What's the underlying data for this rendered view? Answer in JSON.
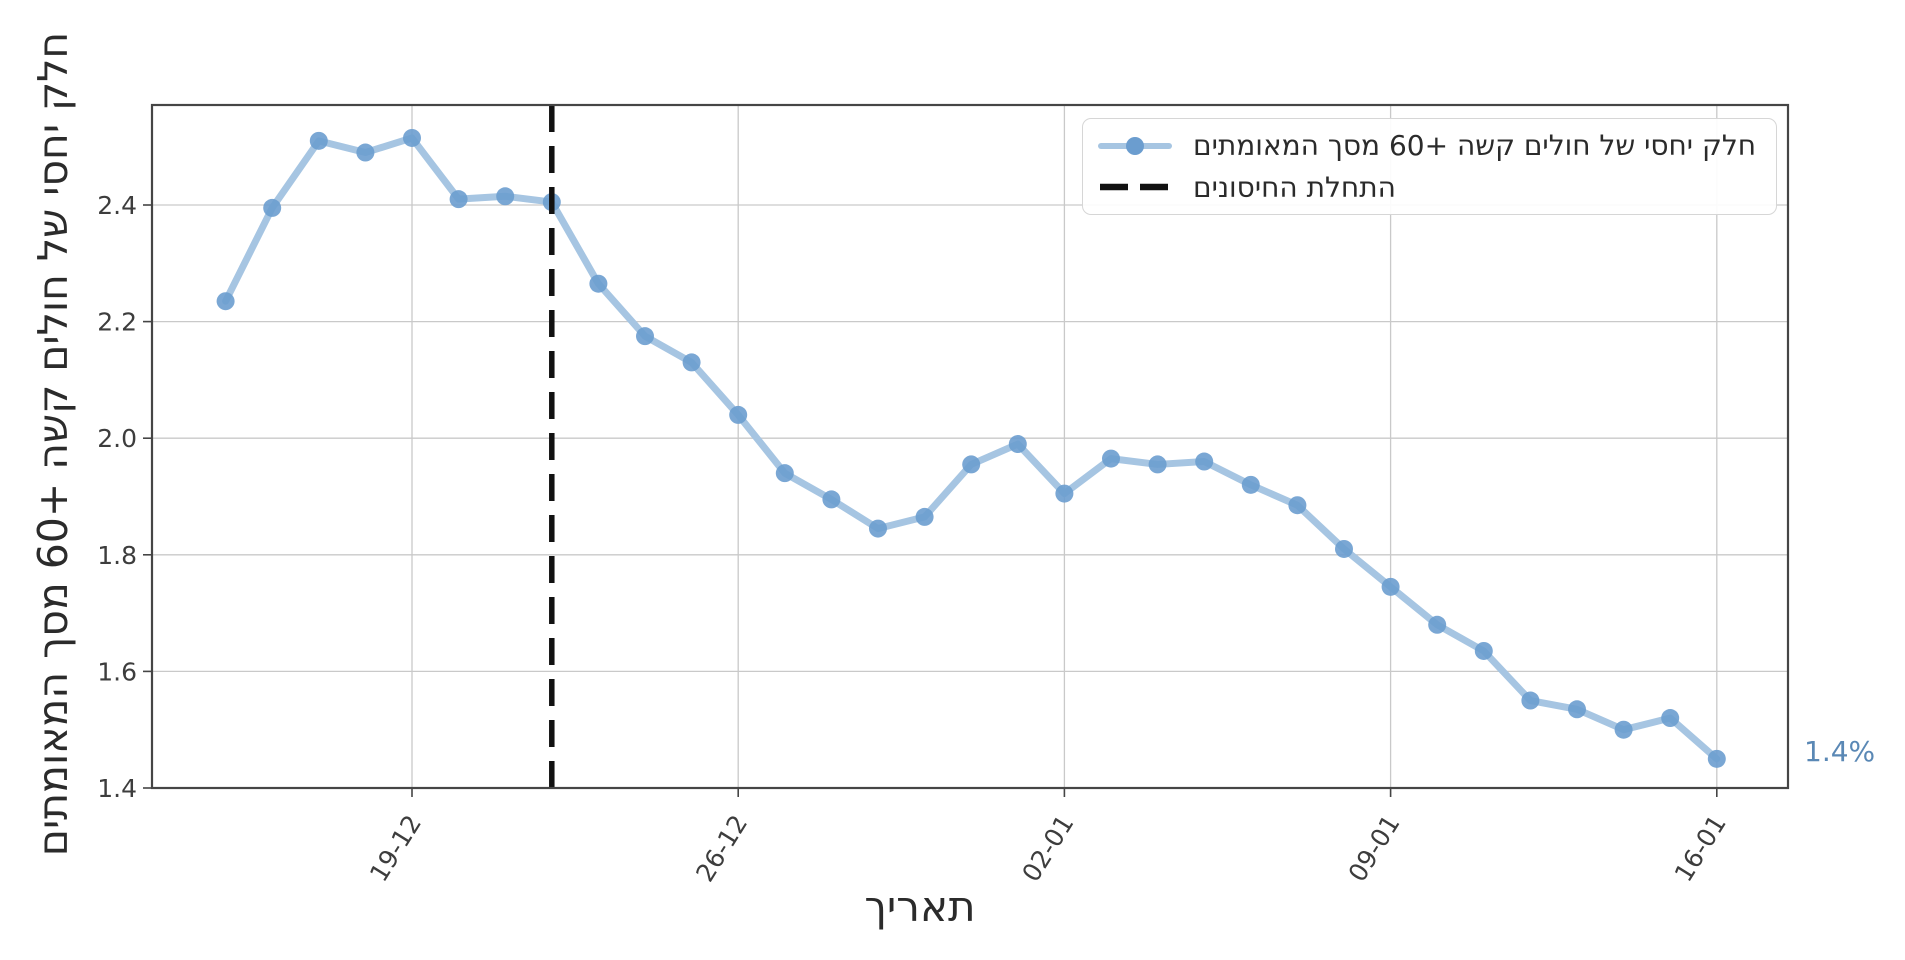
{
  "chart_data": {
    "type": "line",
    "title": "",
    "xlabel": "תאריך",
    "ylabel": "חלק יחסי של חולים קשה +60 מסך המאומתים",
    "x": [
      "15-12",
      "16-12",
      "17-12",
      "18-12",
      "19-12",
      "20-12",
      "21-12",
      "22-12",
      "23-12",
      "24-12",
      "25-12",
      "26-12",
      "27-12",
      "28-12",
      "29-12",
      "30-12",
      "31-12",
      "01-01",
      "02-01",
      "03-01",
      "04-01",
      "05-01",
      "06-01",
      "07-01",
      "08-01",
      "09-01",
      "10-01",
      "11-01",
      "12-01",
      "13-01",
      "14-01",
      "15-01",
      "16-01"
    ],
    "series": [
      {
        "name": "חלק יחסי של חולים קשה +60 מסך המאומתים",
        "values": [
          2.235,
          2.395,
          2.51,
          2.49,
          2.515,
          2.41,
          2.415,
          2.405,
          2.265,
          2.175,
          2.13,
          2.04,
          1.94,
          1.895,
          1.845,
          1.865,
          1.955,
          1.99,
          1.905,
          1.965,
          1.955,
          1.96,
          1.92,
          1.885,
          1.81,
          1.745,
          1.68,
          1.635,
          1.55,
          1.535,
          1.5,
          1.52,
          1.45
        ]
      }
    ],
    "yticks": [
      1.4,
      1.6,
      1.8,
      2.0,
      2.2,
      2.4
    ],
    "xticks": [
      "19-12",
      "26-12",
      "02-01",
      "09-01",
      "16-01"
    ],
    "ylim": [
      1.4,
      2.57
    ],
    "grid": true,
    "vline": {
      "x": "22-12",
      "label": "התחלת החיסונים",
      "style": "dashed"
    },
    "annotation": {
      "text": "1.4%"
    },
    "legend": {
      "position": "top-right",
      "items": [
        {
          "label": "חלק יחסי של חולים קשה +60 מסך המאומתים"
        },
        {
          "label": "התחלת החיסונים"
        }
      ]
    },
    "colors": {
      "line": "#a6c5e2",
      "marker": "#6b9dcf",
      "vline": "#111111",
      "annotation": "#5a88b5",
      "grid": "#c9c9c9",
      "spine": "#454545",
      "tick_text": "#3d3d3d"
    }
  }
}
